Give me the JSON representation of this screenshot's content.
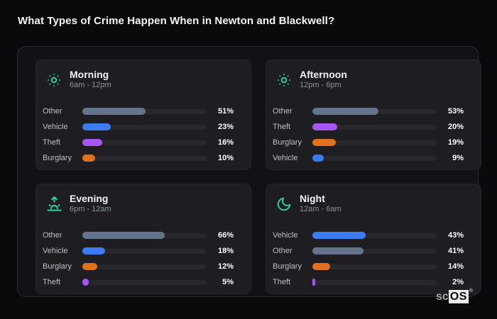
{
  "header": {
    "title": "What Types of Crime Happen When in Newton and Blackwell?"
  },
  "category_colors": {
    "Other": "#64748b",
    "Vehicle": "#3b7df0",
    "Theft": "#a855f7",
    "Burglary": "#e2711d"
  },
  "accent_color": "#2bd3a0",
  "chart_data": [
    {
      "type": "bar",
      "orientation": "horizontal",
      "title": "Morning",
      "subtitle": "6am - 12pm",
      "icon": "sun-icon",
      "unit": "%",
      "xlim": [
        0,
        100
      ],
      "categories": [
        "Other",
        "Vehicle",
        "Theft",
        "Burglary"
      ],
      "values": [
        51,
        23,
        16,
        10
      ],
      "value_labels": [
        "51%",
        "23%",
        "16%",
        "10%"
      ],
      "bar_colors": [
        "#64748b",
        "#3b7df0",
        "#a855f7",
        "#e2711d"
      ]
    },
    {
      "type": "bar",
      "orientation": "horizontal",
      "title": "Afternoon",
      "subtitle": "12pm - 6pm",
      "icon": "sun-icon",
      "unit": "%",
      "xlim": [
        0,
        100
      ],
      "categories": [
        "Other",
        "Theft",
        "Burglary",
        "Vehicle"
      ],
      "values": [
        53,
        20,
        19,
        9
      ],
      "value_labels": [
        "53%",
        "20%",
        "19%",
        "9%"
      ],
      "bar_colors": [
        "#64748b",
        "#a855f7",
        "#e2711d",
        "#3b7df0"
      ]
    },
    {
      "type": "bar",
      "orientation": "horizontal",
      "title": "Evening",
      "subtitle": "6pm - 12am",
      "icon": "sunrise-icon",
      "unit": "%",
      "xlim": [
        0,
        100
      ],
      "categories": [
        "Other",
        "Vehicle",
        "Burglary",
        "Theft"
      ],
      "values": [
        66,
        18,
        12,
        5
      ],
      "value_labels": [
        "66%",
        "18%",
        "12%",
        "5%"
      ],
      "bar_colors": [
        "#64748b",
        "#3b7df0",
        "#e2711d",
        "#a855f7"
      ]
    },
    {
      "type": "bar",
      "orientation": "horizontal",
      "title": "Night",
      "subtitle": "12am - 6am",
      "icon": "moon-icon",
      "unit": "%",
      "xlim": [
        0,
        100
      ],
      "categories": [
        "Vehicle",
        "Other",
        "Burglary",
        "Theft"
      ],
      "values": [
        43,
        41,
        14,
        2
      ],
      "value_labels": [
        "43%",
        "41%",
        "14%",
        "2%"
      ],
      "bar_colors": [
        "#3b7df0",
        "#64748b",
        "#e2711d",
        "#a855f7"
      ]
    }
  ],
  "watermark": {
    "prefix": "sc",
    "brand": "OS",
    "registered": "®"
  }
}
